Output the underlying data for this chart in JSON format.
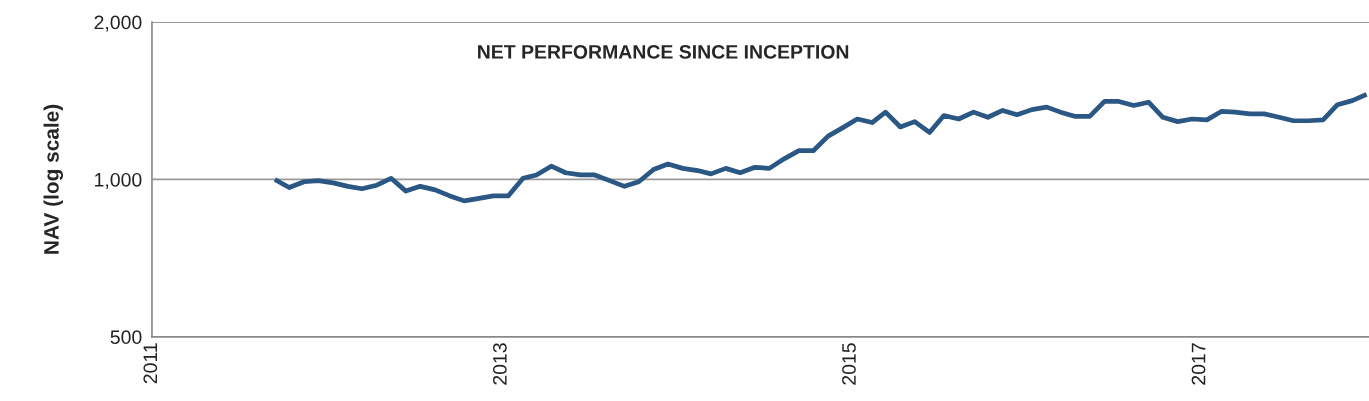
{
  "chart_data": {
    "type": "line",
    "title": "NET PERFORMANCE SINCE INCEPTION",
    "ylabel": "NAV (log scale)",
    "log": "y",
    "grid": "y",
    "xlim": [
      "2011-01-01",
      "2017-12-20"
    ],
    "ylim": [
      500,
      2000
    ],
    "xticks": [
      {
        "value": "2011-01-01",
        "label": "2011"
      },
      {
        "value": "2013-01-01",
        "label": "2013"
      },
      {
        "value": "2015-01-01",
        "label": "2015"
      },
      {
        "value": "2017-01-01",
        "label": "2017"
      }
    ],
    "yticks": [
      {
        "value": 500,
        "label": "500"
      },
      {
        "value": 1000,
        "label": "1,000"
      },
      {
        "value": 2000,
        "label": "2,000"
      }
    ],
    "x": [
      "2011-09-15",
      "2011-10-15",
      "2011-11-15",
      "2011-12-15",
      "2012-01-15",
      "2012-02-15",
      "2012-03-15",
      "2012-04-15",
      "2012-05-15",
      "2012-06-15",
      "2012-07-15",
      "2012-08-15",
      "2012-09-15",
      "2012-10-15",
      "2012-11-15",
      "2012-12-15",
      "2013-01-15",
      "2013-02-15",
      "2013-03-15",
      "2013-04-15",
      "2013-05-15",
      "2013-06-15",
      "2013-07-15",
      "2013-08-15",
      "2013-09-15",
      "2013-10-15",
      "2013-11-15",
      "2013-12-15",
      "2014-01-15",
      "2014-02-15",
      "2014-03-15",
      "2014-04-15",
      "2014-05-15",
      "2014-06-15",
      "2014-07-15",
      "2014-08-15",
      "2014-09-15",
      "2014-10-15",
      "2014-11-15",
      "2014-12-15",
      "2015-01-15",
      "2015-02-15",
      "2015-03-15",
      "2015-04-15",
      "2015-05-15",
      "2015-06-15",
      "2015-07-15",
      "2015-08-15",
      "2015-09-15",
      "2015-10-15",
      "2015-11-15",
      "2015-12-15",
      "2016-01-15",
      "2016-02-15",
      "2016-03-15",
      "2016-04-15",
      "2016-05-15",
      "2016-06-15",
      "2016-07-15",
      "2016-08-15",
      "2016-09-15",
      "2016-10-15",
      "2016-11-15",
      "2016-12-15",
      "2017-01-15",
      "2017-02-15",
      "2017-03-15",
      "2017-04-15",
      "2017-05-15",
      "2017-06-15",
      "2017-07-15",
      "2017-08-15",
      "2017-09-15",
      "2017-10-15",
      "2017-11-15",
      "2017-12-15"
    ],
    "series": [
      {
        "color": "#2a5783",
        "values": [
          1000,
          965,
          990,
          995,
          985,
          970,
          960,
          975,
          1005,
          950,
          970,
          955,
          930,
          910,
          920,
          930,
          930,
          1005,
          1020,
          1060,
          1030,
          1020,
          1020,
          995,
          970,
          990,
          1045,
          1070,
          1050,
          1040,
          1025,
          1050,
          1030,
          1055,
          1050,
          1095,
          1135,
          1135,
          1210,
          1255,
          1305,
          1285,
          1345,
          1260,
          1290,
          1230,
          1325,
          1305,
          1345,
          1315,
          1355,
          1330,
          1360,
          1375,
          1345,
          1320,
          1320,
          1410,
          1410,
          1385,
          1405,
          1315,
          1290,
          1305,
          1300,
          1350,
          1345,
          1335,
          1335,
          1315,
          1295,
          1295,
          1300,
          1390,
          1415,
          1455
        ]
      }
    ]
  }
}
